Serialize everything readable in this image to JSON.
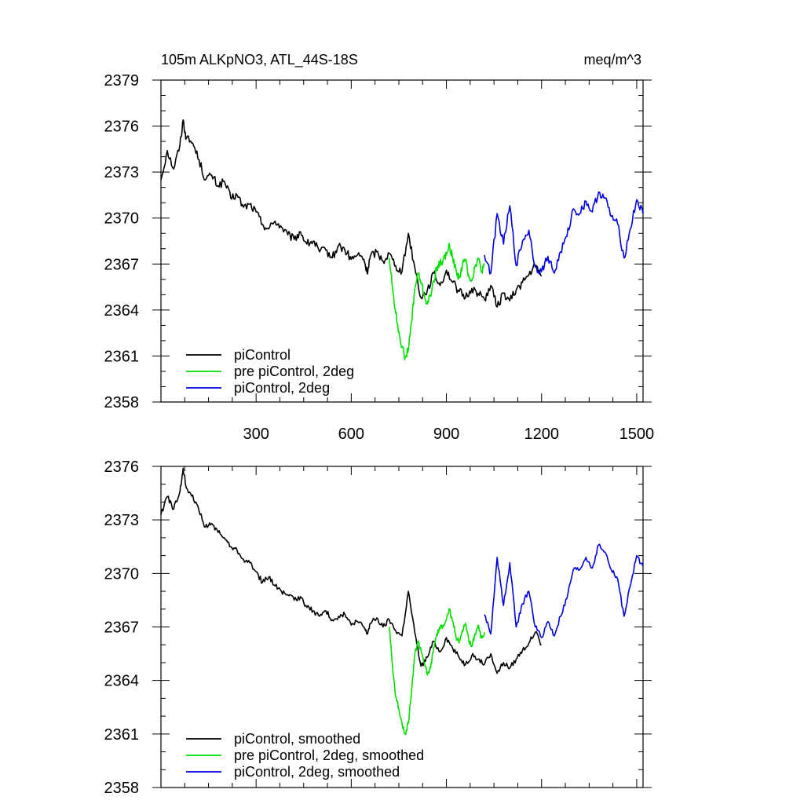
{
  "chart_data": [
    {
      "type": "line",
      "title": "105m ALKpNO3, ATL_44S-18S",
      "units": "meq/m^3",
      "xlabel": "",
      "ylabel": "",
      "xlim": [
        0,
        1520
      ],
      "ylim": [
        2358,
        2379
      ],
      "xticks": [
        300,
        600,
        900,
        1200,
        1500
      ],
      "yticks": [
        2358,
        2361,
        2364,
        2367,
        2370,
        2373,
        2376,
        2379
      ],
      "legend_position": "bottom-left",
      "series": [
        {
          "name": "piControl",
          "color": "#000000",
          "x": [
            0,
            20,
            40,
            60,
            70,
            80,
            100,
            120,
            140,
            160,
            180,
            200,
            220,
            240,
            260,
            280,
            300,
            320,
            340,
            360,
            380,
            400,
            420,
            440,
            460,
            480,
            500,
            520,
            540,
            560,
            580,
            600,
            620,
            640,
            650,
            660,
            680,
            700,
            720,
            740,
            760,
            780,
            800,
            820,
            840,
            860,
            880,
            900,
            920,
            940,
            960,
            980,
            1000,
            1020,
            1040,
            1060,
            1080,
            1100,
            1120,
            1140,
            1160,
            1180,
            1200
          ],
          "y": [
            2372.5,
            2374.4,
            2373.2,
            2374.8,
            2376.4,
            2375.2,
            2374.9,
            2373.8,
            2372.5,
            2372.8,
            2372.1,
            2372.4,
            2371.3,
            2371.5,
            2370.7,
            2370.9,
            2370.4,
            2369.6,
            2369.3,
            2369.8,
            2369.4,
            2368.9,
            2368.6,
            2369.1,
            2368.3,
            2368.5,
            2367.8,
            2367.9,
            2367.4,
            2368.2,
            2367.9,
            2367.3,
            2367.6,
            2367.3,
            2366.4,
            2367.5,
            2367.8,
            2367.2,
            2367.7,
            2366.9,
            2366.5,
            2369.0,
            2366.8,
            2364.8,
            2365.3,
            2366.4,
            2365.6,
            2366.6,
            2365.8,
            2365.2,
            2364.8,
            2365.4,
            2365.1,
            2364.7,
            2365.6,
            2364.2,
            2365.1,
            2364.6,
            2365.3,
            2365.8,
            2366.3,
            2366.9,
            2366.2
          ]
        },
        {
          "name": "pre piControl, 2deg",
          "color": "#00e000",
          "x": [
            720,
            730,
            740,
            750,
            760,
            770,
            780,
            790,
            800,
            810,
            820,
            830,
            840,
            850,
            860,
            870,
            880,
            890,
            900,
            910,
            920,
            930,
            940,
            950,
            960,
            970,
            980,
            990,
            1000,
            1010,
            1020
          ],
          "y": [
            2367.4,
            2365.5,
            2363.8,
            2362.6,
            2361.6,
            2360.9,
            2361.4,
            2363.2,
            2365.3,
            2366.4,
            2365.8,
            2365.0,
            2364.4,
            2364.9,
            2365.9,
            2366.8,
            2367.0,
            2367.3,
            2367.6,
            2368.2,
            2367.4,
            2366.6,
            2366.1,
            2366.9,
            2367.3,
            2366.3,
            2365.9,
            2366.8,
            2367.4,
            2366.5,
            2366.9
          ]
        },
        {
          "name": "piControl, 2deg",
          "color": "#0000e0",
          "x": [
            1020,
            1040,
            1060,
            1080,
            1100,
            1120,
            1140,
            1160,
            1180,
            1200,
            1220,
            1240,
            1260,
            1280,
            1300,
            1320,
            1340,
            1360,
            1380,
            1400,
            1420,
            1440,
            1460,
            1480,
            1500,
            1520
          ],
          "y": [
            2367.6,
            2366.4,
            2370.3,
            2368.3,
            2370.8,
            2366.9,
            2368.5,
            2369.2,
            2366.8,
            2366.5,
            2367.5,
            2366.4,
            2367.8,
            2368.8,
            2370.6,
            2370.3,
            2371.1,
            2370.4,
            2371.7,
            2371.3,
            2370.1,
            2369.6,
            2367.4,
            2369.3,
            2371.2,
            2370.3
          ]
        }
      ]
    },
    {
      "type": "line",
      "title": "",
      "units": "",
      "xlabel": "",
      "ylabel": "",
      "xlim": [
        0,
        1520
      ],
      "ylim": [
        2358,
        2376
      ],
      "xticks": [
        300,
        600,
        900,
        1200,
        1500
      ],
      "yticks": [
        2358,
        2361,
        2364,
        2367,
        2370,
        2373,
        2376
      ],
      "show_x_tick_labels": false,
      "legend_position": "bottom-left",
      "series": [
        {
          "name": "piControl, smoothed",
          "color": "#000000",
          "x": [
            0,
            20,
            40,
            60,
            70,
            80,
            100,
            120,
            140,
            160,
            180,
            200,
            220,
            240,
            260,
            280,
            300,
            320,
            340,
            360,
            380,
            400,
            420,
            440,
            460,
            480,
            500,
            520,
            540,
            560,
            580,
            600,
            620,
            640,
            650,
            660,
            680,
            700,
            720,
            740,
            760,
            780,
            800,
            820,
            840,
            860,
            880,
            900,
            920,
            940,
            960,
            980,
            1000,
            1020,
            1040,
            1060,
            1080,
            1100,
            1120,
            1140,
            1160,
            1180,
            1200
          ],
          "y": [
            2373.3,
            2374.3,
            2373.6,
            2374.6,
            2375.9,
            2374.8,
            2374.4,
            2373.5,
            2372.6,
            2372.8,
            2372.3,
            2372.0,
            2371.5,
            2371.3,
            2370.8,
            2370.6,
            2370.1,
            2369.5,
            2369.8,
            2369.3,
            2369.0,
            2368.8,
            2368.5,
            2368.7,
            2368.1,
            2367.9,
            2367.6,
            2367.9,
            2367.4,
            2367.6,
            2367.7,
            2367.1,
            2367.3,
            2367.0,
            2366.6,
            2367.2,
            2367.5,
            2367.0,
            2367.4,
            2366.8,
            2366.5,
            2369.0,
            2366.7,
            2364.8,
            2365.3,
            2366.2,
            2365.6,
            2366.4,
            2365.8,
            2365.3,
            2364.9,
            2365.4,
            2365.2,
            2364.9,
            2365.5,
            2364.4,
            2365.0,
            2364.7,
            2365.2,
            2365.7,
            2366.1,
            2366.7,
            2366.0
          ]
        },
        {
          "name": "pre piControl, 2deg, smoothed",
          "color": "#00e000",
          "x": [
            720,
            730,
            740,
            750,
            760,
            770,
            780,
            790,
            800,
            810,
            820,
            830,
            840,
            850,
            860,
            870,
            880,
            890,
            900,
            910,
            920,
            930,
            940,
            950,
            960,
            970,
            980,
            990,
            1000,
            1010,
            1020
          ],
          "y": [
            2367.0,
            2364.8,
            2363.1,
            2362.4,
            2361.6,
            2361.0,
            2361.6,
            2363.4,
            2365.4,
            2366.2,
            2365.7,
            2365.0,
            2364.3,
            2364.7,
            2365.8,
            2366.6,
            2366.9,
            2367.1,
            2367.4,
            2368.0,
            2367.3,
            2366.5,
            2366.1,
            2366.8,
            2367.2,
            2366.3,
            2365.9,
            2366.6,
            2367.1,
            2366.4,
            2366.7
          ]
        },
        {
          "name": "piControl, 2deg, smoothed",
          "color": "#0000e0",
          "x": [
            1020,
            1040,
            1060,
            1080,
            1100,
            1120,
            1140,
            1160,
            1180,
            1200,
            1220,
            1240,
            1260,
            1280,
            1300,
            1320,
            1340,
            1360,
            1380,
            1400,
            1420,
            1440,
            1460,
            1480,
            1500,
            1520
          ],
          "y": [
            2367.7,
            2366.6,
            2370.9,
            2368.2,
            2370.6,
            2367.0,
            2368.3,
            2369.0,
            2367.0,
            2366.4,
            2367.3,
            2366.5,
            2367.6,
            2368.6,
            2370.2,
            2370.2,
            2370.9,
            2370.3,
            2371.6,
            2371.2,
            2370.2,
            2369.7,
            2367.6,
            2369.3,
            2371.0,
            2370.4
          ]
        }
      ]
    }
  ]
}
